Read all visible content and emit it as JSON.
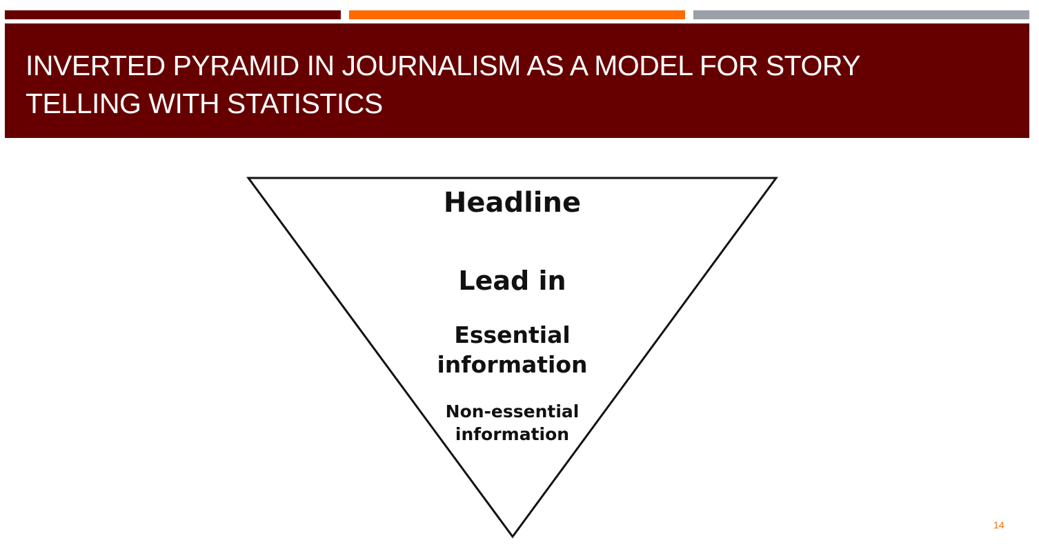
{
  "slide": {
    "title": "INVERTED PYRAMID IN JOURNALISM AS A MODEL FOR STORY TELLING WITH STATISTICS",
    "page_number": "14"
  },
  "diagram": {
    "levels": [
      {
        "label": "Headline"
      },
      {
        "label": "Lead in"
      },
      {
        "label": "Essential information"
      },
      {
        "label": "Non-essential information"
      }
    ]
  },
  "colors": {
    "title_background": "#660000",
    "accent_bar_1": "#660000",
    "accent_bar_2": "#ff6a00",
    "accent_bar_3": "#9aa0a8",
    "page_number": "#ff6a00",
    "pyramid_outline": "#111111"
  }
}
